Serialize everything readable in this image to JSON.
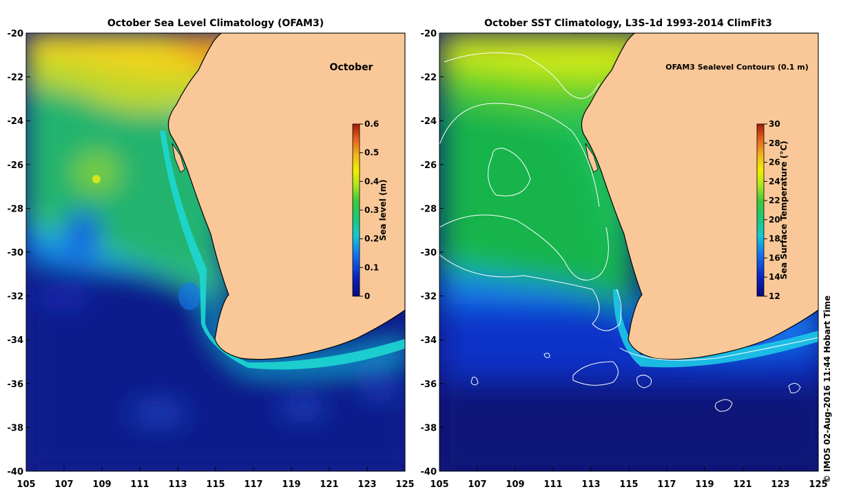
{
  "left_panel": {
    "title": "October Sea Level Climatology (OFAM3)",
    "month_label": "October",
    "colorbar": {
      "label": "Sea level (m)",
      "min": 0,
      "max": 0.6,
      "ticks": [
        "0",
        "0.1",
        "0.2",
        "0.3",
        "0.4",
        "0.5",
        "0.6"
      ]
    }
  },
  "right_panel": {
    "title": "October SST Climatology, L3S-1d 1993-2014 ClimFit3",
    "contour_note": "OFAM3 Sealevel Contours (0.1 m)",
    "colorbar": {
      "label": "Sea Surface Temperature (°C)",
      "min": 12,
      "max": 30,
      "ticks": [
        "12",
        "14",
        "16",
        "18",
        "20",
        "22",
        "24",
        "26",
        "28",
        "30"
      ]
    }
  },
  "axes": {
    "lon_range": [
      105,
      125
    ],
    "lat_range": [
      -40,
      -20
    ],
    "x_ticks": [
      "105",
      "107",
      "109",
      "111",
      "113",
      "115",
      "117",
      "119",
      "121",
      "123",
      "125"
    ],
    "y_ticks": [
      "-20",
      "-22",
      "-24",
      "-26",
      "-28",
      "-30",
      "-32",
      "-34",
      "-36",
      "-38",
      "-40"
    ]
  },
  "credit": "© IMOS 02-Aug-2016 11:44 Hobart Time",
  "colors": {
    "land": "#FAC898",
    "coast": "#000000",
    "contour": "#ffffff"
  }
}
